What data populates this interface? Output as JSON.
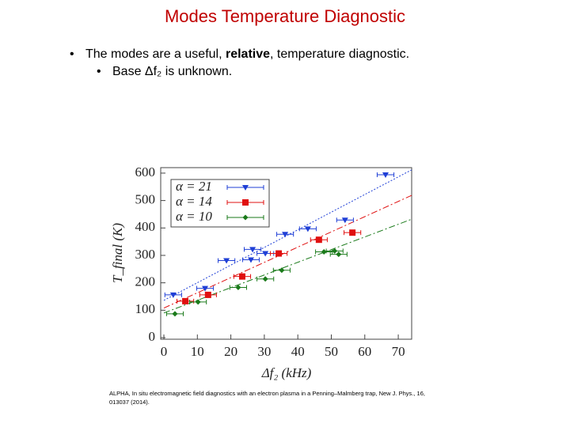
{
  "slide": {
    "title": "Modes Temperature Diagnostic",
    "bullet": {
      "pre": "The modes are a useful, ",
      "bold": "relative",
      "post": ", temperature diagnostic."
    },
    "sub_bullet": "Base Δf₂ is unknown.",
    "citation": "ALPHA, In situ electromagnetic field diagnostics with an electron plasma in a Penning–Malmberg trap, New J. Phys., 16, 013037 (2014)."
  },
  "chart_data": {
    "type": "scatter",
    "xlabel": "Δf₂ (kHz)",
    "ylabel": "T_final (K)",
    "xlim": [
      0,
      74
    ],
    "ylim": [
      0,
      620
    ],
    "xticks": [
      0,
      10,
      20,
      30,
      40,
      50,
      60,
      70
    ],
    "yticks": [
      0,
      100,
      200,
      300,
      400,
      500,
      600
    ],
    "series": [
      {
        "name": "α = 21",
        "color": "#1f3fd6",
        "marker": "triangle",
        "xerr": 2.5,
        "x": [
          2.8,
          12.3,
          18.7,
          26.5,
          26,
          30.3,
          36.2,
          43,
          54.1,
          66.2
        ],
        "values": [
          156,
          180,
          281,
          322,
          284,
          307,
          377,
          397,
          429,
          594
        ]
      },
      {
        "name": "α = 14",
        "color": "#e01010",
        "marker": "square",
        "xerr": 2.5,
        "x": [
          6.4,
          13.2,
          23.4,
          34.3,
          46.3,
          56.3
        ],
        "values": [
          133,
          156,
          223,
          307,
          357,
          383
        ]
      },
      {
        "name": "α = 10",
        "color": "#1a7a1a",
        "marker": "diamond",
        "xerr": 2.5,
        "x": [
          3.3,
          10.2,
          22.2,
          30.3,
          35.2,
          47.8,
          51,
          52.2
        ],
        "values": [
          87,
          130,
          183,
          214,
          246,
          313,
          316,
          304
        ]
      }
    ],
    "fits": [
      {
        "color": "#1f3fd6",
        "x": [
          0,
          74
        ],
        "values": [
          136,
          612
        ]
      },
      {
        "color": "#e01010",
        "x": [
          0,
          74
        ],
        "values": [
          108,
          519
        ]
      },
      {
        "color": "#1a7a1a",
        "x": [
          0,
          74
        ],
        "values": [
          90,
          432
        ]
      }
    ]
  }
}
